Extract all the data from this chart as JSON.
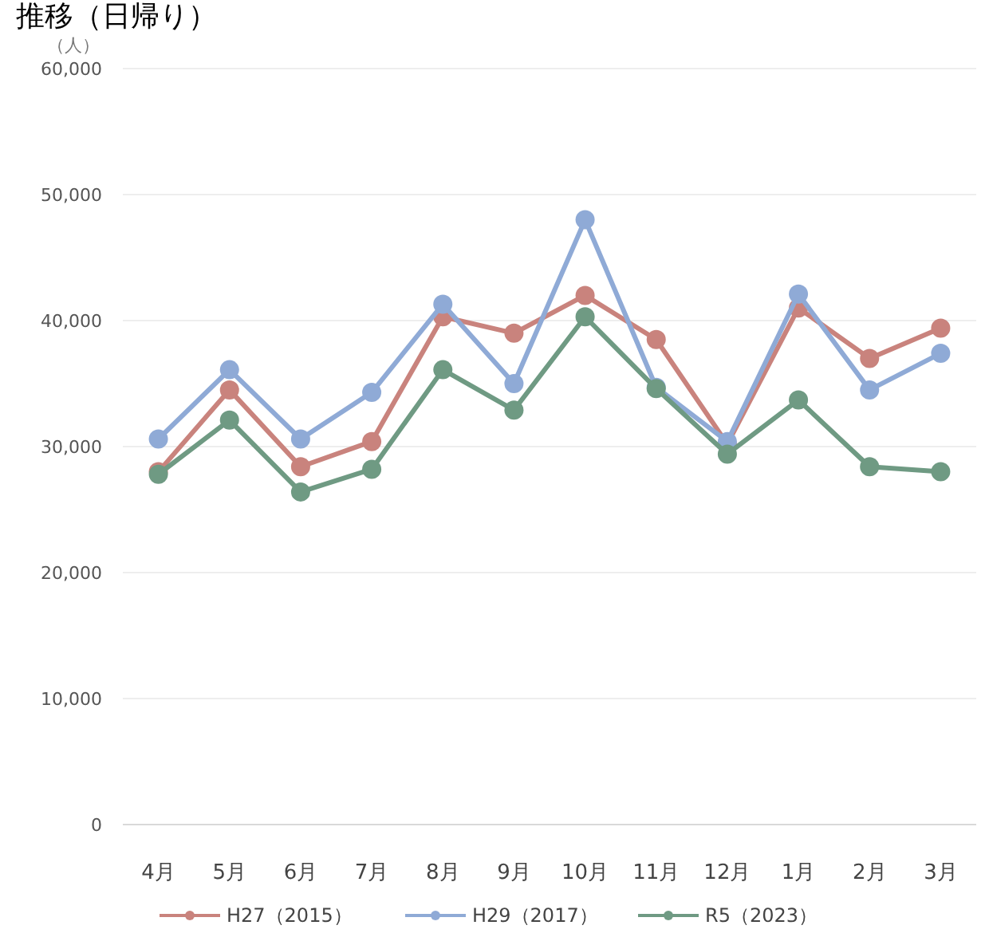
{
  "chart_data": {
    "type": "line",
    "title": "推移（日帰り）",
    "ylabel": "（人）",
    "categories": [
      "4月",
      "5月",
      "6月",
      "7月",
      "8月",
      "9月",
      "10月",
      "11月",
      "12月",
      "1月",
      "2月",
      "3月"
    ],
    "series": [
      {
        "name": "H27（2015）",
        "color": "#c9837d",
        "values": [
          28000,
          34500,
          28400,
          30400,
          40300,
          39000,
          42000,
          38500,
          30200,
          41000,
          37000,
          39400
        ]
      },
      {
        "name": "H29（2017）",
        "color": "#8faad6",
        "values": [
          30600,
          36100,
          30600,
          34300,
          41300,
          35000,
          48000,
          34700,
          30400,
          42100,
          34500,
          37400
        ]
      },
      {
        "name": "R5（2023）",
        "color": "#6f9a83",
        "values": [
          27800,
          32100,
          26400,
          28200,
          36100,
          32900,
          40300,
          34600,
          29400,
          33700,
          28400,
          28000
        ]
      }
    ],
    "ylim": [
      0,
      60000
    ],
    "yticks": [
      {
        "value": 0,
        "label": "0"
      },
      {
        "value": 10000,
        "label": "10,000"
      },
      {
        "value": 20000,
        "label": "20,000"
      },
      {
        "value": 30000,
        "label": "30,000"
      },
      {
        "value": 40000,
        "label": "40,000"
      },
      {
        "value": 50000,
        "label": "50,000"
      },
      {
        "value": 60000,
        "label": "60,000"
      }
    ],
    "grid": "y",
    "legend": "bottom",
    "marker": "circle",
    "line_style": "solid"
  }
}
